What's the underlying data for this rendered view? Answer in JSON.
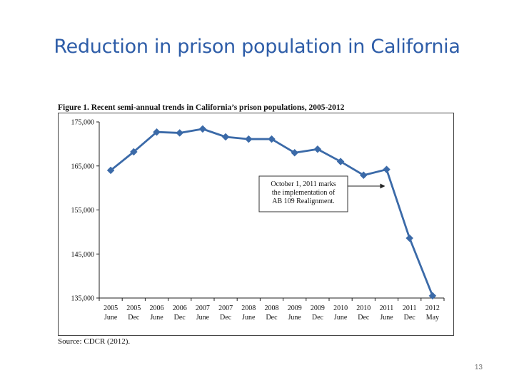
{
  "slide": {
    "title": "Reduction in prison population in California",
    "page_number": "13"
  },
  "figure": {
    "caption": "Figure 1. Recent semi-annual trends in California’s prison populations, 2005-2012",
    "source": "Source: CDCR (2012)."
  },
  "colors": {
    "title": "#2e5da8",
    "series_line": "#3b6aa8"
  },
  "chart_data": {
    "type": "line",
    "title": "Figure 1. Recent semi-annual trends in California’s prison populations, 2005-2012",
    "xlabel": "",
    "ylabel": "",
    "ylim": [
      135000,
      175000
    ],
    "yticks": [
      "175,000",
      "165,000",
      "155,000",
      "145,000",
      "135,000"
    ],
    "ytick_values": [
      175000,
      165000,
      155000,
      145000,
      135000
    ],
    "categories": [
      [
        "2005",
        "June"
      ],
      [
        "2005",
        "Dec"
      ],
      [
        "2006",
        "June"
      ],
      [
        "2006",
        "Dec"
      ],
      [
        "2007",
        "June"
      ],
      [
        "2007",
        "Dec"
      ],
      [
        "2008",
        "June"
      ],
      [
        "2008",
        "Dec"
      ],
      [
        "2009",
        "June"
      ],
      [
        "2009",
        "Dec"
      ],
      [
        "2010",
        "June"
      ],
      [
        "2010",
        "Dec"
      ],
      [
        "2011",
        "June"
      ],
      [
        "2011",
        "Dec"
      ],
      [
        "2012",
        "May"
      ]
    ],
    "series": [
      {
        "values": [
          164000,
          168200,
          172700,
          172500,
          173400,
          171600,
          171100,
          171100,
          168000,
          168800,
          166000,
          162900,
          164200,
          148600,
          135500
        ]
      }
    ],
    "grid": false,
    "annotation": {
      "lines": [
        "October 1, 2011 marks",
        "the implementation of",
        "AB 109 Realignment."
      ],
      "points_to_category_index": 12
    }
  }
}
